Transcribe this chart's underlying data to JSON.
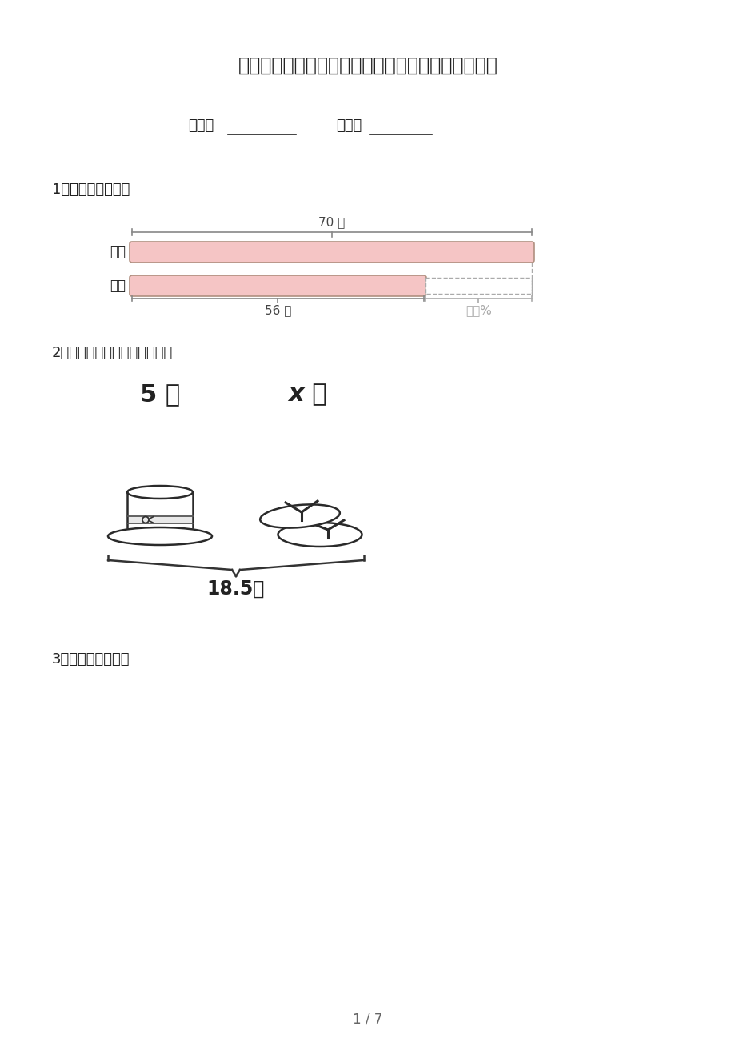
{
  "title": "浙教版六年级上学期数学看图列方程校外培训专项题",
  "class_label": "班级：",
  "name_label": "姓名：",
  "q1_text": "1．看图列式计算。",
  "q2_text": "2．请仔细看图，列方程求解。",
  "q3_text": "3．看图列式计算。",
  "bar_label1": "篮球",
  "bar_label2": "足球",
  "bar_top_text": "70 个",
  "bar_bottom_left": "56 个",
  "bar_bottom_right": "少？%",
  "price1": "5 元",
  "price2": "x 元",
  "total_price": "18.5元",
  "page_num": "1 / 7",
  "bg_color": "#ffffff",
  "bar_fill_color": "#f5c5c5",
  "bar_border_color": "#b09080",
  "text_color": "#222222",
  "gray_color": "#999999"
}
